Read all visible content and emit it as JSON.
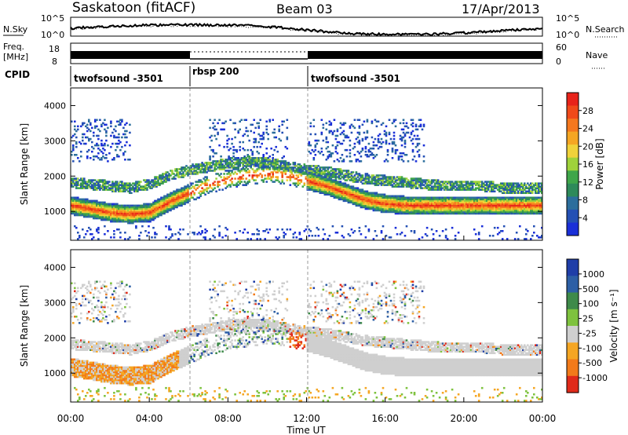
{
  "header": {
    "station": "Saskatoon (fitACF)",
    "beam": "Beam 03",
    "date": "17/Apr/2013"
  },
  "top_panels": {
    "nsky_label": "N.Sky",
    "nsearch_label": "N.Search",
    "nsky_ticks": [
      "10^5",
      "10^0"
    ],
    "nsearch_ticks": [
      "10^5",
      "10^0"
    ],
    "freq_label": "Freq.",
    "freq_unit": "[MHz]",
    "freq_ticks": [
      "18",
      "8"
    ],
    "nave_label": "Nave",
    "nave_ticks": [
      "60",
      "0"
    ],
    "cpid_label": "CPID",
    "cpid_segments": [
      {
        "label": "twofsound -3501",
        "start_h": 0,
        "end_h": 6
      },
      {
        "label": "rbsp 200",
        "start_h": 6,
        "end_h": 12
      },
      {
        "label": "twofsound -3501",
        "start_h": 12,
        "end_h": 24
      }
    ]
  },
  "chart_data": [
    {
      "type": "heatmap",
      "title": "Power",
      "ylabel": "Slant Range [km]",
      "ylim": [
        180,
        4500
      ],
      "yticks": [
        "1000",
        "2000",
        "3000",
        "4000"
      ],
      "xlim": [
        0,
        24
      ],
      "colorbar_label": "Power [dB]",
      "colorbar_ticks": [
        "28",
        "24",
        "20",
        "16",
        "12",
        "8",
        "4"
      ],
      "colorbar_colors": [
        "#e8231a",
        "#f04a1a",
        "#f5781e",
        "#f5a623",
        "#f0d23a",
        "#9fd23a",
        "#3fa64a",
        "#2e8a5a",
        "#2c6e9c",
        "#2450b4",
        "#1a2fd8"
      ],
      "bands": [
        {
          "name": "main",
          "points": [
            [
              0,
              1150
            ],
            [
              1,
              1050
            ],
            [
              2,
              950
            ],
            [
              3,
              900
            ],
            [
              4,
              950
            ],
            [
              5,
              1250
            ],
            [
              6,
              1500
            ],
            [
              7,
              1750
            ],
            [
              8,
              1900
            ],
            [
              9,
              2000
            ],
            [
              10,
              2050
            ],
            [
              11,
              2000
            ],
            [
              12,
              1850
            ],
            [
              13,
              1700
            ],
            [
              14,
              1500
            ],
            [
              15,
              1300
            ],
            [
              16,
              1200
            ],
            [
              17,
              1150
            ],
            [
              18,
              1150
            ],
            [
              19,
              1150
            ],
            [
              20,
              1150
            ],
            [
              21,
              1150
            ],
            [
              22,
              1150
            ],
            [
              23,
              1150
            ],
            [
              24,
              1150
            ]
          ]
        },
        {
          "name": "upper",
          "points": [
            [
              0,
              1800
            ],
            [
              1,
              1750
            ],
            [
              2,
              1700
            ],
            [
              3,
              1650
            ],
            [
              4,
              1750
            ],
            [
              5,
              2000
            ],
            [
              6,
              2150
            ],
            [
              7,
              2250
            ],
            [
              8,
              2350
            ],
            [
              9,
              2400
            ],
            [
              10,
              2350
            ],
            [
              11,
              2250
            ],
            [
              12,
              2150
            ],
            [
              13,
              2100
            ],
            [
              14,
              2000
            ],
            [
              15,
              1900
            ],
            [
              16,
              1850
            ],
            [
              17,
              1800
            ],
            [
              18,
              1750
            ],
            [
              19,
              1700
            ],
            [
              20,
              1700
            ],
            [
              21,
              1700
            ],
            [
              22,
              1650
            ],
            [
              23,
              1650
            ],
            [
              24,
              1650
            ]
          ]
        }
      ]
    },
    {
      "type": "heatmap",
      "title": "Velocity",
      "ylabel": "Slant Range [km]",
      "ylim": [
        180,
        4500
      ],
      "yticks": [
        "1000",
        "2000",
        "3000",
        "4000"
      ],
      "xlim": [
        0,
        24
      ],
      "xticks": [
        "00:00",
        "04:00",
        "08:00",
        "12:00",
        "16:00",
        "20:00",
        "00:00"
      ],
      "xlabel": "Time UT",
      "colorbar_label": "Velocity [m s⁻¹]",
      "colorbar_ticks": [
        "1000",
        "500",
        "100",
        "25",
        "-25",
        "-100",
        "-500",
        "-1000"
      ],
      "colorbar_colors": [
        "#1f3ea8",
        "#2d5fa5",
        "#3e8a4a",
        "#7ec23e",
        "#cfcfcf",
        "#f5a623",
        "#f27a1a",
        "#e02a1a"
      ]
    }
  ]
}
